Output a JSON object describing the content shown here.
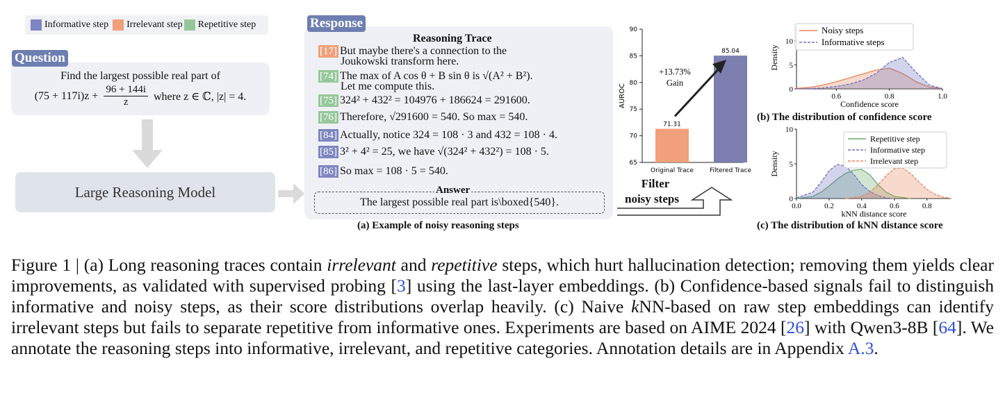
{
  "legend": {
    "informative": {
      "label": "Informative step",
      "color": "#7d85c0"
    },
    "irrelevant": {
      "label": "Irrelevant step",
      "color": "#f0a07a"
    },
    "repetitive": {
      "label": "Repetitive step",
      "color": "#95c79a"
    }
  },
  "question": {
    "label": "Question",
    "line1": "Find the largest possible real part of",
    "lhs": "(75 + 117i)z +",
    "num": "96 + 144i",
    "den": "z",
    "rhs": "where z ∈ ℂ, |z| = 4."
  },
  "model": {
    "label": "Large Reasoning Model"
  },
  "response": {
    "label": "Response",
    "trace_title": "Reasoning Trace",
    "steps": [
      {
        "id": "[17]",
        "type": "irrelevant",
        "text": "But maybe there's a connection to the",
        "text2": "Joukowski transform here."
      },
      {
        "id": "[74]",
        "type": "repetitive",
        "text": "The max of A cos θ + B sin θ is √(A² + B²).",
        "text2": "Let me compute this."
      },
      {
        "id": "[75]",
        "type": "repetitive",
        "text": "324² + 432² = 104976 + 186624 = 291600."
      },
      {
        "id": "[76]",
        "type": "repetitive",
        "text": "Therefore, √291600 = 540. So max  = 540."
      },
      {
        "id": "[84]",
        "type": "informative",
        "text": "Actually, notice 324 = 108 · 3 and 432 = 108 · 4."
      },
      {
        "id": "[85]",
        "type": "informative",
        "text": "3² + 4² = 25,  we have √(324² + 432²) = 108 · 5."
      },
      {
        "id": "[86]",
        "type": "informative",
        "text": "So max  = 108 · 5 = 540."
      }
    ],
    "answer_label": "Answer",
    "answer_text": "The largest possible real part is\\boxed{540}.",
    "caption": "(a)  Example of noisy reasoning steps"
  },
  "filter": {
    "line1": "Filter",
    "line2": "noisy steps"
  },
  "chart_data": [
    {
      "type": "bar",
      "categories": [
        "Original Trace",
        "Filtered Trace"
      ],
      "values": [
        71.31,
        85.04
      ],
      "colors": [
        "#f0a07a",
        "#7d7fb0"
      ],
      "ylabel": "AUROC",
      "ylim": [
        65,
        90
      ],
      "yticks": [
        65,
        70,
        75,
        80,
        85,
        90
      ],
      "annotation": {
        "line1": "+13.73%",
        "line2": "Gain"
      }
    },
    {
      "type": "area",
      "title": "(b) The distribution of  confidence score",
      "xlabel": "Confidence score",
      "ylabel": "Density",
      "xlim": [
        0.45,
        1.0
      ],
      "ylim": [
        0,
        13
      ],
      "xticks": [
        "0.6",
        "0.8",
        "1.0"
      ],
      "yticks": [
        "0",
        "5",
        "10"
      ],
      "series": [
        {
          "name": "Noisy steps",
          "color": "#e8845a",
          "dash": false,
          "x": [
            0.45,
            0.5,
            0.55,
            0.6,
            0.65,
            0.7,
            0.75,
            0.8,
            0.85,
            0.9,
            0.95,
            1.0
          ],
          "y": [
            0.1,
            0.3,
            0.8,
            1.5,
            2.3,
            3.1,
            3.9,
            4.3,
            3.2,
            1.5,
            0.4,
            0.05
          ]
        },
        {
          "name": "Informative steps",
          "color": "#6b6fc0",
          "dash": true,
          "x": [
            0.45,
            0.5,
            0.55,
            0.6,
            0.65,
            0.7,
            0.75,
            0.8,
            0.85,
            0.9,
            0.95,
            1.0
          ],
          "y": [
            0.0,
            0.05,
            0.2,
            0.5,
            1.0,
            1.8,
            3.2,
            5.5,
            6.5,
            3.5,
            0.8,
            0.05
          ]
        }
      ]
    },
    {
      "type": "area",
      "title": "(c) The distribution of  kNN distance score",
      "xlabel": "kNN distance score",
      "ylabel": "Density",
      "xlim": [
        0.0,
        0.95
      ],
      "ylim": [
        0,
        10
      ],
      "xticks": [
        "0.0",
        "0.2",
        "0.4",
        "0.6",
        "0.8"
      ],
      "yticks": [
        "0",
        "5",
        "10"
      ],
      "series": [
        {
          "name": "Repetitive step",
          "color": "#6aaa6e",
          "dash": false,
          "x": [
            0.0,
            0.1,
            0.15,
            0.2,
            0.25,
            0.3,
            0.35,
            0.4,
            0.45,
            0.5,
            0.55,
            0.6,
            0.7
          ],
          "y": [
            0.0,
            0.3,
            0.9,
            1.8,
            2.8,
            3.6,
            4.1,
            4.2,
            3.4,
            2.0,
            0.9,
            0.3,
            0.0
          ]
        },
        {
          "name": "Informative step",
          "color": "#6b6fc0",
          "dash": true,
          "x": [
            0.0,
            0.1,
            0.15,
            0.2,
            0.25,
            0.3,
            0.35,
            0.4,
            0.45,
            0.5,
            0.55,
            0.6
          ],
          "y": [
            0.1,
            0.9,
            2.3,
            4.0,
            4.9,
            4.7,
            3.5,
            2.0,
            1.0,
            0.4,
            0.1,
            0.0
          ]
        },
        {
          "name": "Irrelevant step",
          "color": "#e8845a",
          "dash": true,
          "x": [
            0.3,
            0.4,
            0.45,
            0.5,
            0.55,
            0.6,
            0.65,
            0.7,
            0.75,
            0.8,
            0.85,
            0.9,
            0.95
          ],
          "y": [
            0.0,
            0.3,
            0.9,
            2.0,
            3.3,
            4.3,
            4.4,
            3.6,
            2.4,
            1.3,
            0.6,
            0.2,
            0.0
          ]
        }
      ]
    }
  ],
  "figure_caption": {
    "p1": "Figure 1 | (a) Long reasoning traces contain ",
    "em1": "irrelevant",
    "p2": " and ",
    "em2": "repetitive",
    "p3": " steps, which hurt hallucination detection; removing them yields clear improvements, as validated with supervised probing [",
    "ref1": "3",
    "p4": "] using the last-layer embeddings. (b) Confidence-based signals fail to distinguish informative and noisy steps, as their score distributions overlap heavily. (c) Naive ",
    "k": "k",
    "p5": "NN-based on raw step embeddings can identify irrelevant steps but fails to separate repetitive from informative ones. Experiments are based on AIME 2024 [",
    "ref2": "26",
    "p6": "] with Qwen3-8B [",
    "ref3": "64",
    "p7": "]. We annotate the reasoning steps into informative, irrelevant, and repetitive categories. Annotation details are in Appendix ",
    "ref4": "A.3",
    "p8": "."
  }
}
